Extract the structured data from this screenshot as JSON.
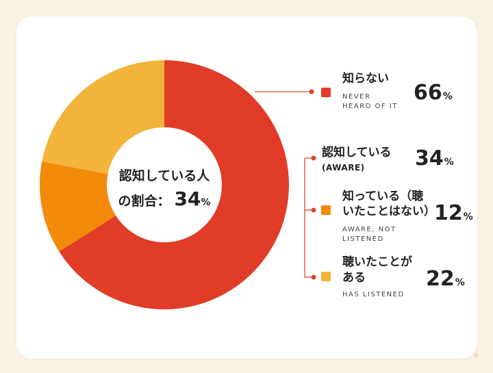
{
  "center": {
    "line1": "認知している人",
    "line2_prefix": "の割合：",
    "value": "34",
    "unit": "%"
  },
  "legend": {
    "never_heard": {
      "jp": "知らない",
      "en_line1": "NEVER",
      "en_line2": "HEARD OF IT",
      "value": "66",
      "unit": "%"
    },
    "aware": {
      "jp": "認知している",
      "en": "(AWARE)",
      "value": "34",
      "unit": "%"
    },
    "aware_not_listened": {
      "jp_line1": "知っている（聴",
      "jp_line2": "いたことはない）",
      "en_line1": "AWARE, NOT",
      "en_line2": "LISTENED",
      "value": "12",
      "unit": "%"
    },
    "has_listened": {
      "jp_line1": "聴いたことが",
      "jp_line2": "ある",
      "en": "HAS LISTENED",
      "value": "22",
      "unit": "%"
    }
  },
  "chart_data": {
    "type": "pie",
    "donut": true,
    "slices": [
      {
        "label": "知らない",
        "value": 66,
        "color": "#e03c27"
      },
      {
        "label": "知っている（聴いたことはない）",
        "value": 12,
        "color": "#f28a0a"
      },
      {
        "label": "聴いたことがある",
        "value": 22,
        "color": "#f2b43a"
      }
    ],
    "start": "12 o'clock",
    "direction": "clockwise"
  },
  "colors": {
    "leader_line": "#d04a33",
    "leader_dot": "#d9442e"
  },
  "icons": {
    "watermark": "sparkle-icon"
  }
}
